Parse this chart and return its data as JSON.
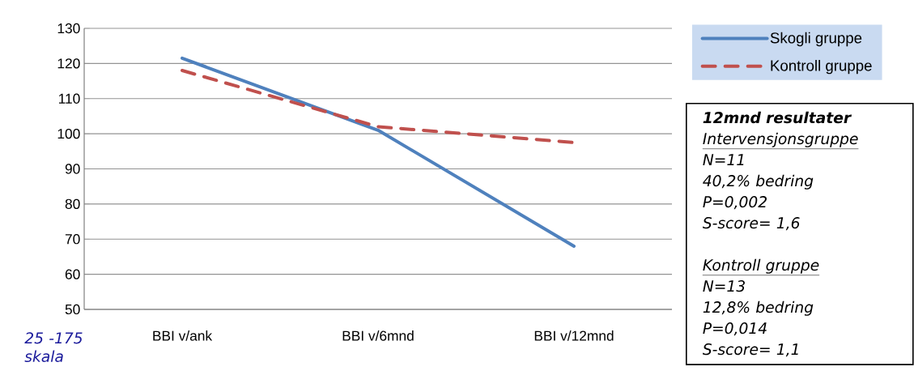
{
  "chart_data": {
    "type": "line",
    "categories": [
      "BBI v/ank",
      "BBI v/6mnd",
      "BBI v/12mnd"
    ],
    "series": [
      {
        "name": "Skogli gruppe",
        "color": "#4f81bd",
        "line_style": "solid",
        "values": [
          121.5,
          101,
          68
        ]
      },
      {
        "name": "Kontroll gruppe",
        "color": "#c0504d",
        "line_style": "dashed",
        "values": [
          118,
          102,
          97.5
        ]
      }
    ],
    "ylim": [
      50,
      130
    ],
    "yticks": [
      50,
      60,
      70,
      80,
      90,
      100,
      110,
      120,
      130
    ],
    "grid": "y",
    "legend": "top right",
    "annotations": [
      "25 -175 skala",
      "12mnd resultater",
      "Intervensjonsgruppe",
      "N=11",
      "40,2% bedring",
      "P=0,002",
      "S-score= 1,6",
      "Kontroll gruppe",
      "N=13",
      "12,8% bedring",
      "P=0,014",
      "S-score= 1,1"
    ]
  }
}
